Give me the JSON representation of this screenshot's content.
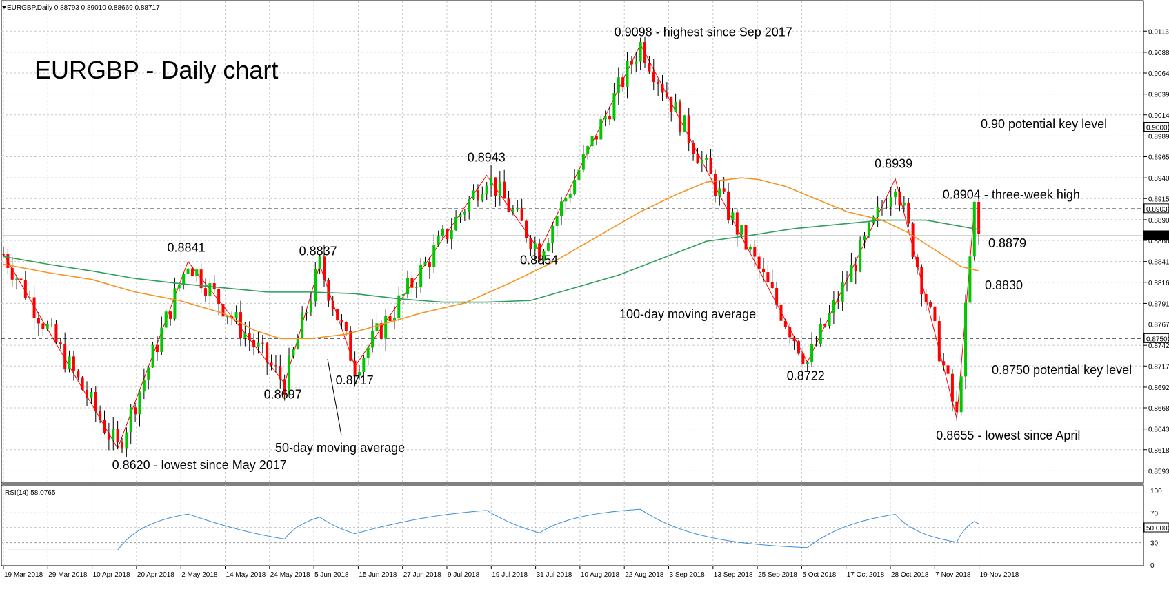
{
  "header": {
    "symbol_line": "EURGBP,Daily  0.88793 0.89010 0.88669 0.88717"
  },
  "chart_data": {
    "type": "candlestick",
    "title": "EURGBP - Daily chart",
    "ylim": [
      0.858,
      0.913
    ],
    "price_ticks": [
      "0.91135",
      "0.90885",
      "0.90640",
      "0.90390",
      "0.90145",
      "0.89895",
      "0.89650",
      "0.89400",
      "0.89155",
      "0.88905",
      "0.88660",
      "0.88410",
      "0.88165",
      "0.87915",
      "0.87670",
      "0.87420",
      "0.87175",
      "0.86925",
      "0.86680",
      "0.86430",
      "0.86185",
      "0.85935"
    ],
    "price_tag_ticks": [
      "0.90000",
      "0.89036",
      "0.88717",
      "0.87500"
    ],
    "date_ticks": [
      "19 Mar 2018",
      "29 Mar 2018",
      "10 Apr 2018",
      "20 Apr 2018",
      "2 May 2018",
      "14 May 2018",
      "24 May 2018",
      "5 Jun 2018",
      "15 Jun 2018",
      "27 Jun 2018",
      "9 Jul 2018",
      "19 Jul 2018",
      "31 Jul 2018",
      "10 Aug 2018",
      "22 Aug 2018",
      "3 Sep 2018",
      "13 Sep 2018",
      "25 Sep 2018",
      "5 Oct 2018",
      "17 Oct 2018",
      "28 Oct 2018",
      "7 Nov 2018",
      "19 Nov 2018"
    ],
    "key_levels": [
      {
        "value": 0.9,
        "label": "0.90 potential key level"
      },
      {
        "value": 0.875,
        "label": "0.8750 potential key level"
      },
      {
        "value": 0.89036,
        "label": ""
      }
    ],
    "swing_points": [
      {
        "bar": 0,
        "value": 0.885
      },
      {
        "bar": 26,
        "value": 0.862,
        "label": "0.8620 - lowest since May 2017"
      },
      {
        "bar": 42,
        "value": 0.8841,
        "label": "0.8841"
      },
      {
        "bar": 64,
        "value": 0.8697,
        "label": "0.8697"
      },
      {
        "bar": 72,
        "value": 0.8837,
        "label": "0.8837"
      },
      {
        "bar": 80,
        "value": 0.8717,
        "label": "0.8717"
      },
      {
        "bar": 110,
        "value": 0.8943,
        "label": "0.8943"
      },
      {
        "bar": 122,
        "value": 0.8854,
        "label": "0.8854"
      },
      {
        "bar": 145,
        "value": 0.9098,
        "label": "0.9098 - highest since Sep 2017"
      },
      {
        "bar": 183,
        "value": 0.8722,
        "label": "0.8722"
      },
      {
        "bar": 203,
        "value": 0.8939,
        "label": "0.8939"
      },
      {
        "bar": 217,
        "value": 0.8655,
        "label": "0.8655 - lowest since April"
      },
      {
        "bar": 221,
        "value": 0.8904,
        "label": "0.8904 - three-week high"
      }
    ],
    "series": [
      {
        "name": "50-day moving average",
        "color": "#f7931e",
        "end_label": "0.8830",
        "points": [
          [
            0,
            0.8838
          ],
          [
            10,
            0.8828
          ],
          [
            20,
            0.882
          ],
          [
            30,
            0.8805
          ],
          [
            40,
            0.8795
          ],
          [
            50,
            0.878
          ],
          [
            57,
            0.876
          ],
          [
            63,
            0.875
          ],
          [
            70,
            0.875
          ],
          [
            78,
            0.8755
          ],
          [
            85,
            0.8765
          ],
          [
            95,
            0.878
          ],
          [
            105,
            0.8792
          ],
          [
            115,
            0.8815
          ],
          [
            125,
            0.884
          ],
          [
            135,
            0.887
          ],
          [
            145,
            0.89
          ],
          [
            153,
            0.892
          ],
          [
            160,
            0.8935
          ],
          [
            168,
            0.894
          ],
          [
            172,
            0.8938
          ],
          [
            178,
            0.893
          ],
          [
            185,
            0.8915
          ],
          [
            192,
            0.89
          ],
          [
            200,
            0.889
          ],
          [
            206,
            0.8875
          ],
          [
            212,
            0.8855
          ],
          [
            218,
            0.8835
          ],
          [
            222,
            0.883
          ]
        ]
      },
      {
        "name": "100-day moving average",
        "color": "#2e9e5b",
        "end_label": "0.8879",
        "points": [
          [
            0,
            0.8847
          ],
          [
            10,
            0.8838
          ],
          [
            20,
            0.883
          ],
          [
            30,
            0.8821
          ],
          [
            40,
            0.8815
          ],
          [
            50,
            0.881
          ],
          [
            60,
            0.8805
          ],
          [
            70,
            0.8805
          ],
          [
            80,
            0.8803
          ],
          [
            90,
            0.8797
          ],
          [
            100,
            0.8793
          ],
          [
            110,
            0.8793
          ],
          [
            120,
            0.8795
          ],
          [
            130,
            0.881
          ],
          [
            140,
            0.8825
          ],
          [
            150,
            0.8845
          ],
          [
            160,
            0.8865
          ],
          [
            170,
            0.8872
          ],
          [
            180,
            0.888
          ],
          [
            190,
            0.8885
          ],
          [
            200,
            0.889
          ],
          [
            210,
            0.889
          ],
          [
            222,
            0.8879
          ]
        ]
      }
    ],
    "annotations": [
      {
        "text": "100-day moving average",
        "color": "#2e9e5b"
      },
      {
        "text": "50-day moving average",
        "color": "#f7931e"
      }
    ],
    "rsi": {
      "label": "RSI(14) 58.0765",
      "period": 14,
      "last_value": 58.0765,
      "levels": [
        70,
        50,
        30
      ],
      "ticks": [
        "100",
        "70",
        "50.0000",
        "30",
        "0"
      ],
      "ylim": [
        0,
        100
      ],
      "color": "#3c8ddc"
    },
    "colors": {
      "bull": "#00c800",
      "bear": "#ff0000",
      "swing_line": "#ff0000",
      "grid": "#c8c8c8"
    }
  }
}
